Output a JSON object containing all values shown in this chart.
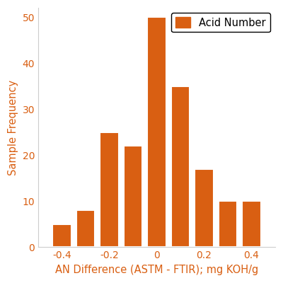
{
  "bar_centers": [
    -0.4,
    -0.3,
    -0.2,
    -0.1,
    0.0,
    0.1,
    0.2,
    0.3,
    0.4
  ],
  "bar_heights": [
    5,
    8,
    25,
    22,
    50,
    35,
    17,
    10,
    10
  ],
  "bar_width": 0.08,
  "bar_color": "#D95F12",
  "bar_edgecolor": "white",
  "bar_linewidth": 1.5,
  "xlabel": "AN Difference (ASTM - FTIR); mg KOH/g",
  "ylabel": "Sample Frequency",
  "xlim": [
    -0.5,
    0.5
  ],
  "ylim": [
    0,
    52
  ],
  "xticks": [
    -0.4,
    -0.2,
    0.0,
    0.2,
    0.4
  ],
  "yticks": [
    0,
    10,
    20,
    30,
    40,
    50
  ],
  "legend_label": "Acid Number",
  "xlabel_fontsize": 10.5,
  "ylabel_fontsize": 10.5,
  "tick_fontsize": 10,
  "legend_fontsize": 10.5,
  "tick_color": "#D95F12",
  "label_color": "#D95F12",
  "background_color": "#ffffff"
}
